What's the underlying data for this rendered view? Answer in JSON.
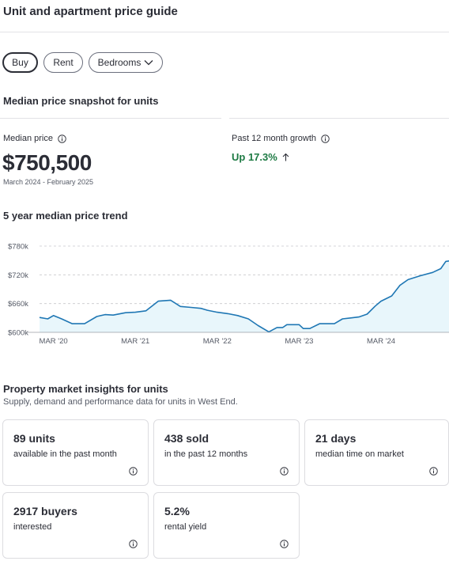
{
  "page": {
    "title": "Unit and apartment price guide"
  },
  "filters": {
    "buy_label": "Buy",
    "rent_label": "Rent",
    "bedrooms_label": "Bedrooms",
    "selected": "Buy"
  },
  "snapshot": {
    "title": "Median price snapshot for units",
    "median_label": "Median price",
    "median_value": "$750,500",
    "median_range": "March 2024 - February 2025",
    "growth_label": "Past 12 month growth",
    "growth_value": "Up 17.3%"
  },
  "trend": {
    "title": "5 year median price trend"
  },
  "chart_data": {
    "type": "area",
    "y_ticks": [
      "$780k",
      "$720k",
      "$660k",
      "$600k"
    ],
    "y_tick_values": [
      780,
      720,
      660,
      600
    ],
    "x_ticks": [
      "MAR '20",
      "MAR '21",
      "MAR '22",
      "MAR '23",
      "MAR '24"
    ],
    "x_tick_values": [
      2020.17,
      2021.17,
      2022.17,
      2023.17,
      2024.17
    ],
    "ylim": [
      600,
      780
    ],
    "xlim": [
      2020.0,
      2025.0
    ],
    "grid": true,
    "series": [
      {
        "x": [
          2020.0,
          2020.1,
          2020.17,
          2020.27,
          2020.4,
          2020.55,
          2020.7,
          2020.8,
          2020.9,
          2021.05,
          2021.17,
          2021.3,
          2021.45,
          2021.6,
          2021.72,
          2021.85,
          2021.97,
          2022.05,
          2022.17,
          2022.3,
          2022.42,
          2022.55,
          2022.67,
          2022.8,
          2022.9,
          2022.97,
          2023.02,
          2023.17,
          2023.22,
          2023.3,
          2023.42,
          2023.5,
          2023.6,
          2023.7,
          2023.8,
          2023.9,
          2024.0,
          2024.1,
          2024.17,
          2024.3,
          2024.4,
          2024.5,
          2024.65,
          2024.8,
          2024.9,
          2024.96,
          2025.0
        ],
        "values": [
          631,
          628,
          635,
          628,
          618,
          618,
          633,
          637,
          636,
          641,
          642,
          645,
          665,
          667,
          654,
          652,
          650,
          646,
          642,
          639,
          635,
          628,
          614,
          601,
          610,
          610,
          616,
          616,
          608,
          608,
          618,
          618,
          618,
          628,
          630,
          632,
          638,
          655,
          665,
          676,
          698,
          710,
          718,
          725,
          733,
          748,
          749
        ],
        "color": "#1f77b4",
        "fill": "#e8f6fb"
      }
    ]
  },
  "insights": {
    "title": "Property market insights for units",
    "subtitle": "Supply, demand and performance data for units in West End.",
    "cards": [
      {
        "metric": "89 units",
        "desc": "available in the past month"
      },
      {
        "metric": "438 sold",
        "desc": "in the past 12 months"
      },
      {
        "metric": "21 days",
        "desc": "median time on market"
      },
      {
        "metric": "2917 buyers",
        "desc": "interested"
      },
      {
        "metric": "5.2%",
        "desc": "rental yield"
      }
    ]
  },
  "colors": {
    "text": "#2b2d36",
    "positive": "#1d7a43",
    "line": "#1f77b4"
  },
  "icons": [
    "info-icon",
    "arrow-up-icon",
    "chevron-down-icon"
  ]
}
